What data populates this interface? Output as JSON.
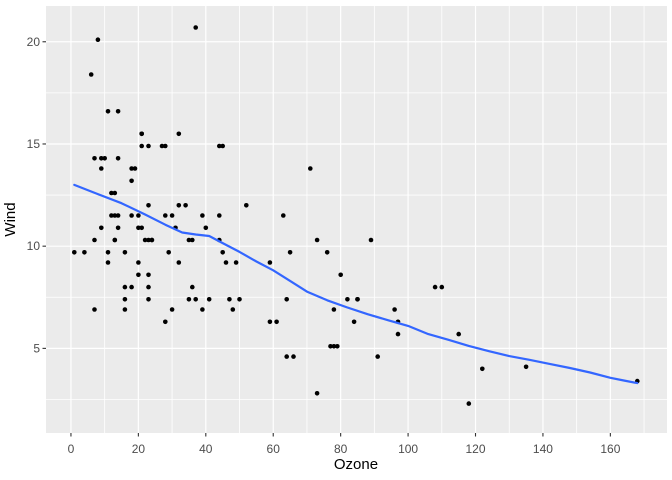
{
  "chart_data": {
    "type": "scatter",
    "title": "",
    "xlabel": "Ozone",
    "ylabel": "Wind",
    "legend": "none",
    "grid": "on",
    "xlim": [
      -7.4,
      176.8
    ],
    "ylim": [
      0.86,
      21.75
    ],
    "x_ticks": [
      {
        "value": 0,
        "label": "0"
      },
      {
        "value": 20,
        "label": "20"
      },
      {
        "value": 40,
        "label": "40"
      },
      {
        "value": 60,
        "label": "60"
      },
      {
        "value": 80,
        "label": "80"
      },
      {
        "value": 100,
        "label": "100"
      },
      {
        "value": 120,
        "label": "120"
      },
      {
        "value": 140,
        "label": "140"
      },
      {
        "value": 160,
        "label": "160"
      }
    ],
    "y_ticks": [
      {
        "value": 5,
        "label": "5"
      },
      {
        "value": 10,
        "label": "10"
      },
      {
        "value": 15,
        "label": "15"
      },
      {
        "value": 20,
        "label": "20"
      }
    ],
    "x_minor_gridlines": [
      10,
      30,
      50,
      70,
      90,
      110,
      130,
      150,
      170
    ],
    "y_minor_gridlines": [
      2.5,
      7.5,
      12.5,
      17.5
    ],
    "points": [
      [
        41,
        7.4
      ],
      [
        36,
        8.0
      ],
      [
        12,
        12.6
      ],
      [
        18,
        11.5
      ],
      [
        28,
        14.9
      ],
      [
        23,
        8.6
      ],
      [
        19,
        13.8
      ],
      [
        8,
        20.1
      ],
      [
        7,
        6.9
      ],
      [
        16,
        9.7
      ],
      [
        11,
        9.2
      ],
      [
        14,
        10.9
      ],
      [
        18,
        13.2
      ],
      [
        14,
        11.5
      ],
      [
        34,
        12.0
      ],
      [
        6,
        18.4
      ],
      [
        30,
        11.5
      ],
      [
        11,
        9.7
      ],
      [
        1,
        9.7
      ],
      [
        11,
        16.6
      ],
      [
        4,
        9.7
      ],
      [
        32,
        12.0
      ],
      [
        23,
        12.0
      ],
      [
        45,
        14.9
      ],
      [
        115,
        5.7
      ],
      [
        37,
        7.4
      ],
      [
        29,
        9.7
      ],
      [
        71,
        13.8
      ],
      [
        39,
        11.5
      ],
      [
        23,
        8.0
      ],
      [
        21,
        14.9
      ],
      [
        37,
        20.7
      ],
      [
        20,
        9.2
      ],
      [
        12,
        11.5
      ],
      [
        13,
        10.3
      ],
      [
        135,
        4.1
      ],
      [
        49,
        9.2
      ],
      [
        32,
        9.2
      ],
      [
        64,
        4.6
      ],
      [
        40,
        10.9
      ],
      [
        77,
        5.1
      ],
      [
        97,
        6.3
      ],
      [
        97,
        5.7
      ],
      [
        85,
        7.4
      ],
      [
        10,
        14.3
      ],
      [
        27,
        14.9
      ],
      [
        7,
        14.3
      ],
      [
        48,
        6.9
      ],
      [
        35,
        10.3
      ],
      [
        61,
        6.3
      ],
      [
        79,
        5.1
      ],
      [
        63,
        11.5
      ],
      [
        16,
        6.9
      ],
      [
        80,
        8.6
      ],
      [
        108,
        8.0
      ],
      [
        20,
        8.6
      ],
      [
        52,
        12.0
      ],
      [
        82,
        7.4
      ],
      [
        50,
        7.4
      ],
      [
        64,
        7.4
      ],
      [
        59,
        9.2
      ],
      [
        39,
        6.9
      ],
      [
        9,
        13.8
      ],
      [
        16,
        7.4
      ],
      [
        78,
        6.9
      ],
      [
        35,
        7.4
      ],
      [
        66,
        4.6
      ],
      [
        122,
        4.0
      ],
      [
        89,
        10.3
      ],
      [
        110,
        8.0
      ],
      [
        44,
        11.5
      ],
      [
        28,
        11.5
      ],
      [
        65,
        9.7
      ],
      [
        22,
        10.3
      ],
      [
        59,
        6.3
      ],
      [
        23,
        7.4
      ],
      [
        31,
        10.9
      ],
      [
        44,
        10.3
      ],
      [
        21,
        15.5
      ],
      [
        9,
        14.3
      ],
      [
        45,
        9.7
      ],
      [
        168,
        3.4
      ],
      [
        73,
        10.3
      ],
      [
        76,
        9.7
      ],
      [
        118,
        2.3
      ],
      [
        84,
        6.3
      ],
      [
        85,
        7.4
      ],
      [
        96,
        6.9
      ],
      [
        78,
        5.1
      ],
      [
        73,
        2.8
      ],
      [
        91,
        4.6
      ],
      [
        47,
        7.4
      ],
      [
        32,
        15.5
      ],
      [
        20,
        10.9
      ],
      [
        23,
        10.3
      ],
      [
        21,
        10.9
      ],
      [
        24,
        10.3
      ],
      [
        44,
        14.9
      ],
      [
        21,
        15.5
      ],
      [
        28,
        6.3
      ],
      [
        9,
        10.9
      ],
      [
        13,
        11.5
      ],
      [
        46,
        9.2
      ],
      [
        18,
        13.8
      ],
      [
        13,
        10.3
      ],
      [
        24,
        10.3
      ],
      [
        16,
        8.0
      ],
      [
        13,
        12.6
      ],
      [
        23,
        14.9
      ],
      [
        36,
        10.3
      ],
      [
        7,
        10.3
      ],
      [
        14,
        16.6
      ],
      [
        30,
        6.9
      ],
      [
        14,
        14.3
      ],
      [
        18,
        8.0
      ],
      [
        20,
        11.5
      ]
    ],
    "smooth_line": {
      "method": "loess",
      "color": "#3366FF",
      "points": [
        [
          1,
          13.0
        ],
        [
          8,
          12.55
        ],
        [
          15,
          12.1
        ],
        [
          22,
          11.55
        ],
        [
          28,
          11.05
        ],
        [
          33,
          10.67
        ],
        [
          37,
          10.57
        ],
        [
          41,
          10.5
        ],
        [
          45,
          10.15
        ],
        [
          50,
          9.72
        ],
        [
          55,
          9.25
        ],
        [
          60,
          8.82
        ],
        [
          65,
          8.3
        ],
        [
          70,
          7.78
        ],
        [
          76,
          7.35
        ],
        [
          82,
          7.0
        ],
        [
          88,
          6.67
        ],
        [
          94,
          6.38
        ],
        [
          100,
          6.1
        ],
        [
          106,
          5.7
        ],
        [
          112,
          5.42
        ],
        [
          118,
          5.12
        ],
        [
          124,
          4.86
        ],
        [
          130,
          4.62
        ],
        [
          136,
          4.44
        ],
        [
          142,
          4.24
        ],
        [
          148,
          4.04
        ],
        [
          154,
          3.82
        ],
        [
          160,
          3.56
        ],
        [
          164,
          3.43
        ],
        [
          168,
          3.3
        ]
      ]
    },
    "style": {
      "figure_background": "#FFFFFF",
      "panel_background": "#EBEBEB",
      "gridline_color": "#FFFFFF",
      "point_color": "#000000",
      "smooth_color": "#3366FF",
      "tick_mark_color": "#333333",
      "tick_label_color": "#4D4D4D",
      "axis_title_color": "#000000"
    }
  }
}
